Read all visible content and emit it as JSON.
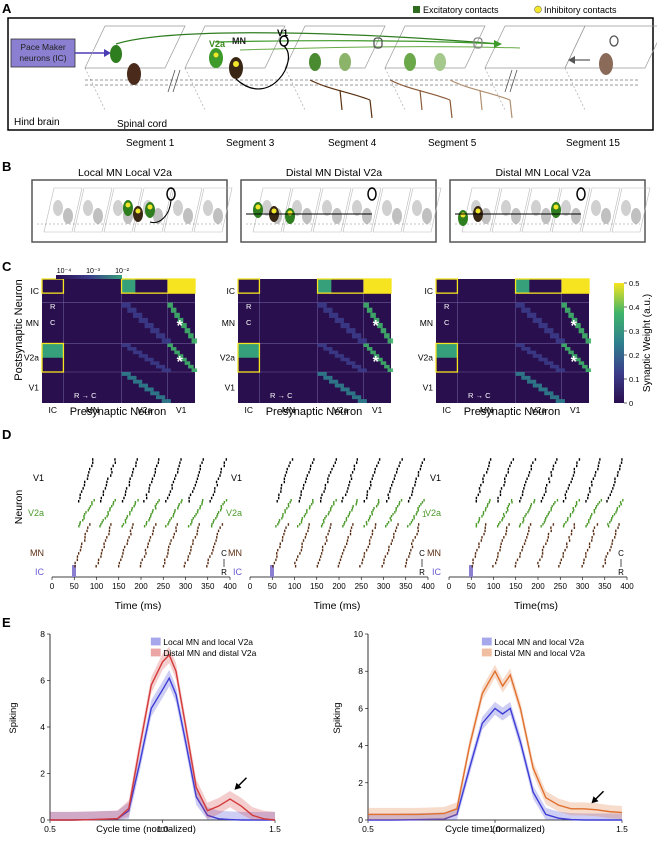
{
  "panelA": {
    "letter": "A",
    "legend_excitatory": "Excitatory contacts",
    "legend_inhibitory": "Inhibitory contacts",
    "pacemaker": [
      "Pace Maker",
      "neurons (IC)"
    ],
    "hindbrain": "Hind brain",
    "spinal_cord": "Spinal cord",
    "labels": {
      "v2a": "V2a",
      "mn": "MN",
      "v1": "V1"
    },
    "segments": [
      "Segment 1",
      "Segment 3",
      "Segment 4",
      "Segment 5",
      "Segment 15"
    ]
  },
  "panelB": {
    "letter": "B",
    "titles": [
      "Local MN Local V2a",
      "Distal MN Distal V2a",
      "Distal MN Local V2a"
    ]
  },
  "panelC": {
    "letter": "C",
    "ylabel": "Postsynaptic Neuron",
    "xlabel": "Presynaptic Neuron",
    "row_labels": [
      "IC",
      "MN",
      "V2a",
      "V1"
    ],
    "col_labels": [
      "IC",
      "MN",
      "V2a",
      "V1"
    ],
    "rc_v": [
      "R",
      "C"
    ],
    "rc_h": "R → C",
    "inset_ticks": [
      "10⁻⁴",
      "10⁻³",
      "10⁻²"
    ],
    "colorbar_label": "Synaptic Weight (a.u.)",
    "colorbar_ticks": [
      "0",
      "0.1",
      "0.2",
      "0.3",
      "0.4",
      "0.5"
    ],
    "star": "*"
  },
  "panelD": {
    "letter": "D",
    "ylabel": "Neuron",
    "xlabel": "Time (ms)",
    "xlabel_right": "Time(ms)",
    "row_labels": [
      "V1",
      "V2a",
      "MN",
      "IC"
    ],
    "xticks": [
      "0",
      "50",
      "100",
      "150",
      "200",
      "250",
      "300",
      "350",
      "400"
    ],
    "cr": [
      "C",
      "R"
    ],
    "one_label": "1"
  },
  "panelE": {
    "letter": "E",
    "ylabel": "Spiking",
    "xlabel": "Cycle time (normalized)",
    "left": {
      "legend": [
        "Local MN and local V2a",
        "Distal MN and distal V2a"
      ],
      "yticks": [
        "0",
        "2",
        "4",
        "6",
        "8"
      ],
      "xticks": [
        "0.5",
        "1.0",
        "1.5"
      ]
    },
    "right": {
      "legend": [
        "Local MN and local V2a",
        "Distal MN and local V2a"
      ],
      "yticks": [
        "0",
        "2",
        "4",
        "6",
        "8",
        "10"
      ],
      "xticks": [
        "0.5",
        "1.0",
        "1.5"
      ]
    }
  },
  "chart_data": [
    {
      "type": "line",
      "xlabel": "Cycle time (normalized)",
      "ylabel": "Spiking",
      "xlim": [
        0.5,
        1.5
      ],
      "ylim": [
        0,
        8
      ],
      "x": [
        0.5,
        0.6,
        0.7,
        0.8,
        0.85,
        0.9,
        0.95,
        1.0,
        1.03,
        1.06,
        1.1,
        1.15,
        1.2,
        1.25,
        1.3,
        1.35,
        1.4,
        1.45,
        1.5
      ],
      "series": [
        {
          "name": "Local MN and local V2a",
          "color": "#3d3dd6",
          "values": [
            0,
            0,
            0.02,
            0.05,
            0.4,
            2.5,
            4.8,
            5.6,
            6.1,
            5.4,
            3.5,
            1.0,
            0.2,
            0.05,
            0.02,
            0,
            0,
            0,
            0
          ]
        },
        {
          "name": "Distal MN and distal V2a",
          "color": "#d43a3a",
          "values": [
            0,
            0,
            0.02,
            0.06,
            0.5,
            3.2,
            5.8,
            6.8,
            7.1,
            6.4,
            4.2,
            1.4,
            0.4,
            0.6,
            0.9,
            0.6,
            0.2,
            0.05,
            0
          ]
        }
      ]
    },
    {
      "type": "line",
      "xlabel": "Cycle time (normalized)",
      "ylabel": "Spiking",
      "xlim": [
        0.5,
        1.5
      ],
      "ylim": [
        0,
        10
      ],
      "x": [
        0.5,
        0.6,
        0.7,
        0.8,
        0.85,
        0.9,
        0.95,
        1.0,
        1.03,
        1.06,
        1.1,
        1.15,
        1.2,
        1.25,
        1.3,
        1.35,
        1.4,
        1.45,
        1.5
      ],
      "series": [
        {
          "name": "Local MN and local V2a",
          "color": "#3d3dd6",
          "values": [
            0,
            0,
            0.02,
            0.05,
            0.3,
            2.8,
            5.2,
            6.0,
            5.7,
            6.0,
            4.2,
            1.5,
            0.3,
            0.1,
            0.02,
            0,
            0,
            0,
            0
          ]
        },
        {
          "name": "Distal MN and local V2a",
          "color": "#e0702e",
          "values": [
            0.3,
            0.3,
            0.3,
            0.35,
            0.6,
            4.0,
            6.8,
            8.0,
            7.2,
            7.8,
            6.0,
            2.8,
            1.2,
            0.8,
            0.6,
            0.6,
            0.55,
            0.45,
            0.4
          ]
        }
      ]
    }
  ]
}
